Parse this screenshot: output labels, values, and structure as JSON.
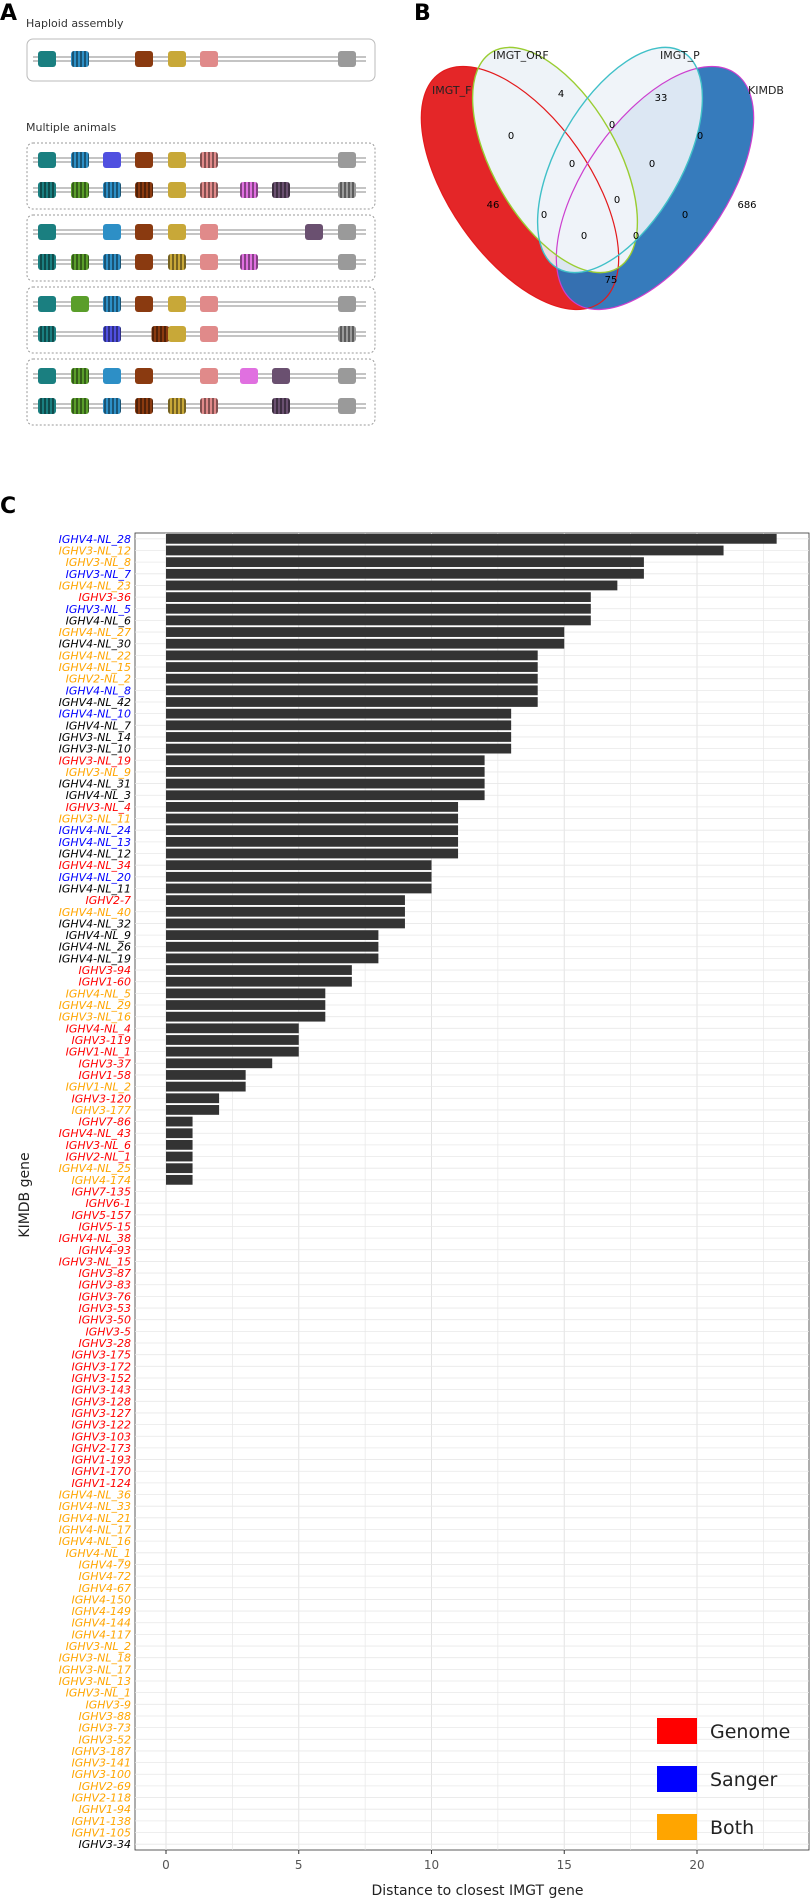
{
  "panelA": {
    "letter": "A",
    "haploid_label": "Haploid assembly",
    "multiple_label": "Multiple animals"
  },
  "panelB": {
    "letter": "B",
    "sets": [
      "IMGT_F",
      "IMGT_ORF",
      "IMGT_P",
      "KIMDB"
    ],
    "colors": {
      "IMGT_F": "#e31a1c",
      "IMGT_ORF": "#9acd32",
      "IMGT_P": "#40c0c8",
      "KIMDB": "#2b74b8",
      "purple": "#cc3fcf"
    },
    "region_counts": [
      "46",
      "4",
      "33",
      "686",
      "0",
      "0",
      "0",
      "0",
      "0",
      "0",
      "0",
      "0",
      "0",
      "0",
      "75"
    ]
  },
  "panelC": {
    "letter": "C",
    "legend": [
      {
        "label": "Genome",
        "color": "#ff0000"
      },
      {
        "label": "Sanger",
        "color": "#0000ff"
      },
      {
        "label": "Both",
        "color": "#ffa500"
      }
    ]
  },
  "chart_data": {
    "type": "bar",
    "orientation": "horizontal",
    "xlabel": "Distance to closest IMGT gene",
    "ylabel": "KIMDB gene",
    "xlim": [
      0,
      24
    ],
    "xticks": [
      "0",
      "5",
      "10",
      "15",
      "20"
    ],
    "grid": true,
    "legend_position": "bottom-right",
    "bar_color": "#333333",
    "source_colors": {
      "Genome": "#ff0000",
      "Sanger": "#0000ff",
      "Both": "#ffa500",
      "Other": "#000000"
    },
    "categories": [
      {
        "gene": "IGHV4-NL_28",
        "source": "Sanger",
        "value": 23
      },
      {
        "gene": "IGHV3-NL_12",
        "source": "Both",
        "value": 21
      },
      {
        "gene": "IGHV3-NL_8",
        "source": "Both",
        "value": 18
      },
      {
        "gene": "IGHV3-NL_7",
        "source": "Sanger",
        "value": 18
      },
      {
        "gene": "IGHV4-NL_23",
        "source": "Both",
        "value": 17
      },
      {
        "gene": "IGHV3-36",
        "source": "Genome",
        "value": 16
      },
      {
        "gene": "IGHV3-NL_5",
        "source": "Sanger",
        "value": 16
      },
      {
        "gene": "IGHV4-NL_6",
        "source": "Other",
        "value": 16
      },
      {
        "gene": "IGHV4-NL_27",
        "source": "Both",
        "value": 15
      },
      {
        "gene": "IGHV4-NL_30",
        "source": "Other",
        "value": 15
      },
      {
        "gene": "IGHV4-NL_22",
        "source": "Both",
        "value": 14
      },
      {
        "gene": "IGHV4-NL_15",
        "source": "Both",
        "value": 14
      },
      {
        "gene": "IGHV2-NL_2",
        "source": "Both",
        "value": 14
      },
      {
        "gene": "IGHV4-NL_8",
        "source": "Sanger",
        "value": 14
      },
      {
        "gene": "IGHV4-NL_42",
        "source": "Other",
        "value": 14
      },
      {
        "gene": "IGHV4-NL_10",
        "source": "Sanger",
        "value": 13
      },
      {
        "gene": "IGHV4-NL_7",
        "source": "Other",
        "value": 13
      },
      {
        "gene": "IGHV3-NL_14",
        "source": "Other",
        "value": 13
      },
      {
        "gene": "IGHV3-NL_10",
        "source": "Other",
        "value": 13
      },
      {
        "gene": "IGHV3-NL_19",
        "source": "Genome",
        "value": 12
      },
      {
        "gene": "IGHV3-NL_9",
        "source": "Both",
        "value": 12
      },
      {
        "gene": "IGHV4-NL_31",
        "source": "Other",
        "value": 12
      },
      {
        "gene": "IGHV4-NL_3",
        "source": "Other",
        "value": 12
      },
      {
        "gene": "IGHV3-NL_4",
        "source": "Genome",
        "value": 11
      },
      {
        "gene": "IGHV3-NL_11",
        "source": "Both",
        "value": 11
      },
      {
        "gene": "IGHV4-NL_24",
        "source": "Sanger",
        "value": 11
      },
      {
        "gene": "IGHV4-NL_13",
        "source": "Sanger",
        "value": 11
      },
      {
        "gene": "IGHV4-NL_12",
        "source": "Other",
        "value": 11
      },
      {
        "gene": "IGHV4-NL_34",
        "source": "Genome",
        "value": 10
      },
      {
        "gene": "IGHV4-NL_20",
        "source": "Sanger",
        "value": 10
      },
      {
        "gene": "IGHV4-NL_11",
        "source": "Other",
        "value": 10
      },
      {
        "gene": "IGHV2-7",
        "source": "Genome",
        "value": 9
      },
      {
        "gene": "IGHV4-NL_40",
        "source": "Both",
        "value": 9
      },
      {
        "gene": "IGHV4-NL_32",
        "source": "Other",
        "value": 9
      },
      {
        "gene": "IGHV4-NL_9",
        "source": "Other",
        "value": 8
      },
      {
        "gene": "IGHV4-NL_26",
        "source": "Other",
        "value": 8
      },
      {
        "gene": "IGHV4-NL_19",
        "source": "Other",
        "value": 8
      },
      {
        "gene": "IGHV3-94",
        "source": "Genome",
        "value": 7
      },
      {
        "gene": "IGHV1-60",
        "source": "Genome",
        "value": 7
      },
      {
        "gene": "IGHV4-NL_5",
        "source": "Both",
        "value": 6
      },
      {
        "gene": "IGHV4-NL_29",
        "source": "Both",
        "value": 6
      },
      {
        "gene": "IGHV3-NL_16",
        "source": "Both",
        "value": 6
      },
      {
        "gene": "IGHV4-NL_4",
        "source": "Genome",
        "value": 5
      },
      {
        "gene": "IGHV3-119",
        "source": "Genome",
        "value": 5
      },
      {
        "gene": "IGHV1-NL_1",
        "source": "Genome",
        "value": 5
      },
      {
        "gene": "IGHV3-37",
        "source": "Genome",
        "value": 4
      },
      {
        "gene": "IGHV1-58",
        "source": "Genome",
        "value": 3
      },
      {
        "gene": "IGHV1-NL_2",
        "source": "Both",
        "value": 3
      },
      {
        "gene": "IGHV3-120",
        "source": "Genome",
        "value": 2
      },
      {
        "gene": "IGHV3-177",
        "source": "Both",
        "value": 2
      },
      {
        "gene": "IGHV7-86",
        "source": "Genome",
        "value": 1
      },
      {
        "gene": "IGHV4-NL_43",
        "source": "Genome",
        "value": 1
      },
      {
        "gene": "IGHV3-NL_6",
        "source": "Genome",
        "value": 1
      },
      {
        "gene": "IGHV2-NL_1",
        "source": "Genome",
        "value": 1
      },
      {
        "gene": "IGHV4-NL_25",
        "source": "Both",
        "value": 1
      },
      {
        "gene": "IGHV4-174",
        "source": "Both",
        "value": 1
      },
      {
        "gene": "IGHV7-135",
        "source": "Genome",
        "value": 0
      },
      {
        "gene": "IGHV6-1",
        "source": "Genome",
        "value": 0
      },
      {
        "gene": "IGHV5-157",
        "source": "Genome",
        "value": 0
      },
      {
        "gene": "IGHV5-15",
        "source": "Genome",
        "value": 0
      },
      {
        "gene": "IGHV4-NL_38",
        "source": "Genome",
        "value": 0
      },
      {
        "gene": "IGHV4-93",
        "source": "Genome",
        "value": 0
      },
      {
        "gene": "IGHV3-NL_15",
        "source": "Genome",
        "value": 0
      },
      {
        "gene": "IGHV3-87",
        "source": "Genome",
        "value": 0
      },
      {
        "gene": "IGHV3-83",
        "source": "Genome",
        "value": 0
      },
      {
        "gene": "IGHV3-76",
        "source": "Genome",
        "value": 0
      },
      {
        "gene": "IGHV3-53",
        "source": "Genome",
        "value": 0
      },
      {
        "gene": "IGHV3-50",
        "source": "Genome",
        "value": 0
      },
      {
        "gene": "IGHV3-5",
        "source": "Genome",
        "value": 0
      },
      {
        "gene": "IGHV3-28",
        "source": "Genome",
        "value": 0
      },
      {
        "gene": "IGHV3-175",
        "source": "Genome",
        "value": 0
      },
      {
        "gene": "IGHV3-172",
        "source": "Genome",
        "value": 0
      },
      {
        "gene": "IGHV3-152",
        "source": "Genome",
        "value": 0
      },
      {
        "gene": "IGHV3-143",
        "source": "Genome",
        "value": 0
      },
      {
        "gene": "IGHV3-128",
        "source": "Genome",
        "value": 0
      },
      {
        "gene": "IGHV3-127",
        "source": "Genome",
        "value": 0
      },
      {
        "gene": "IGHV3-122",
        "source": "Genome",
        "value": 0
      },
      {
        "gene": "IGHV3-103",
        "source": "Genome",
        "value": 0
      },
      {
        "gene": "IGHV2-173",
        "source": "Genome",
        "value": 0
      },
      {
        "gene": "IGHV1-193",
        "source": "Genome",
        "value": 0
      },
      {
        "gene": "IGHV1-170",
        "source": "Genome",
        "value": 0
      },
      {
        "gene": "IGHV1-124",
        "source": "Genome",
        "value": 0
      },
      {
        "gene": "IGHV4-NL_36",
        "source": "Both",
        "value": 0
      },
      {
        "gene": "IGHV4-NL_33",
        "source": "Both",
        "value": 0
      },
      {
        "gene": "IGHV4-NL_21",
        "source": "Both",
        "value": 0
      },
      {
        "gene": "IGHV4-NL_17",
        "source": "Both",
        "value": 0
      },
      {
        "gene": "IGHV4-NL_16",
        "source": "Both",
        "value": 0
      },
      {
        "gene": "IGHV4-NL_1",
        "source": "Both",
        "value": 0
      },
      {
        "gene": "IGHV4-79",
        "source": "Both",
        "value": 0
      },
      {
        "gene": "IGHV4-72",
        "source": "Both",
        "value": 0
      },
      {
        "gene": "IGHV4-67",
        "source": "Both",
        "value": 0
      },
      {
        "gene": "IGHV4-150",
        "source": "Both",
        "value": 0
      },
      {
        "gene": "IGHV4-149",
        "source": "Both",
        "value": 0
      },
      {
        "gene": "IGHV4-144",
        "source": "Both",
        "value": 0
      },
      {
        "gene": "IGHV4-117",
        "source": "Both",
        "value": 0
      },
      {
        "gene": "IGHV3-NL_2",
        "source": "Both",
        "value": 0
      },
      {
        "gene": "IGHV3-NL_18",
        "source": "Both",
        "value": 0
      },
      {
        "gene": "IGHV3-NL_17",
        "source": "Both",
        "value": 0
      },
      {
        "gene": "IGHV3-NL_13",
        "source": "Both",
        "value": 0
      },
      {
        "gene": "IGHV3-NL_1",
        "source": "Both",
        "value": 0
      },
      {
        "gene": "IGHV3-9",
        "source": "Both",
        "value": 0
      },
      {
        "gene": "IGHV3-88",
        "source": "Both",
        "value": 0
      },
      {
        "gene": "IGHV3-73",
        "source": "Both",
        "value": 0
      },
      {
        "gene": "IGHV3-52",
        "source": "Both",
        "value": 0
      },
      {
        "gene": "IGHV3-187",
        "source": "Both",
        "value": 0
      },
      {
        "gene": "IGHV3-141",
        "source": "Both",
        "value": 0
      },
      {
        "gene": "IGHV3-100",
        "source": "Both",
        "value": 0
      },
      {
        "gene": "IGHV2-69",
        "source": "Both",
        "value": 0
      },
      {
        "gene": "IGHV2-118",
        "source": "Both",
        "value": 0
      },
      {
        "gene": "IGHV1-94",
        "source": "Both",
        "value": 0
      },
      {
        "gene": "IGHV1-138",
        "source": "Both",
        "value": 0
      },
      {
        "gene": "IGHV1-105",
        "source": "Both",
        "value": 0
      },
      {
        "gene": "IGHV3-34",
        "source": "Other",
        "value": 0
      }
    ]
  }
}
